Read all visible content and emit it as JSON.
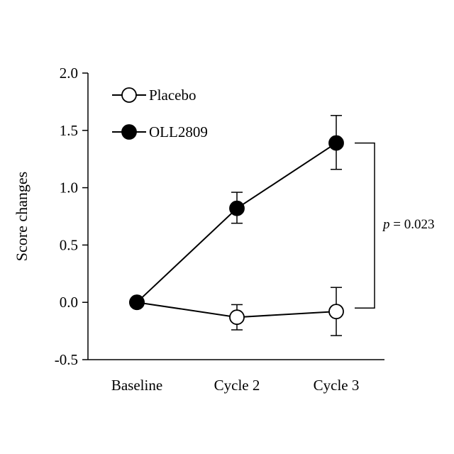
{
  "chart_data": {
    "type": "line",
    "ylabel": "Score changes",
    "xlabel": "",
    "categories": [
      "Baseline",
      "Cycle 2",
      "Cycle 3"
    ],
    "ylim": [
      -0.5,
      2.0
    ],
    "yticks": [
      "2.0",
      "1.5",
      "1.0",
      "0.5",
      "0.0",
      "-0.5"
    ],
    "ytick_values": [
      2.0,
      1.5,
      1.0,
      0.5,
      0.0,
      -0.5
    ],
    "grid": false,
    "legend_position": "top-left",
    "series": [
      {
        "name": "Placebo",
        "marker": "open-circle",
        "color": "#000000",
        "values": [
          0.0,
          -0.13,
          -0.08
        ],
        "error": [
          null,
          [
            -0.24,
            -0.02
          ],
          [
            -0.29,
            0.13
          ]
        ]
      },
      {
        "name": "OLL2809",
        "marker": "filled-circle",
        "color": "#000000",
        "values": [
          0.0,
          0.82,
          1.39
        ],
        "error": [
          null,
          [
            0.69,
            0.96
          ],
          [
            1.16,
            1.63
          ]
        ]
      }
    ],
    "annotation": {
      "p_prefix": "p",
      "p_rest": " = 0.023",
      "between": [
        "Placebo",
        "OLL2809"
      ],
      "at": "Cycle 3",
      "span": [
        -0.05,
        1.39
      ]
    }
  }
}
